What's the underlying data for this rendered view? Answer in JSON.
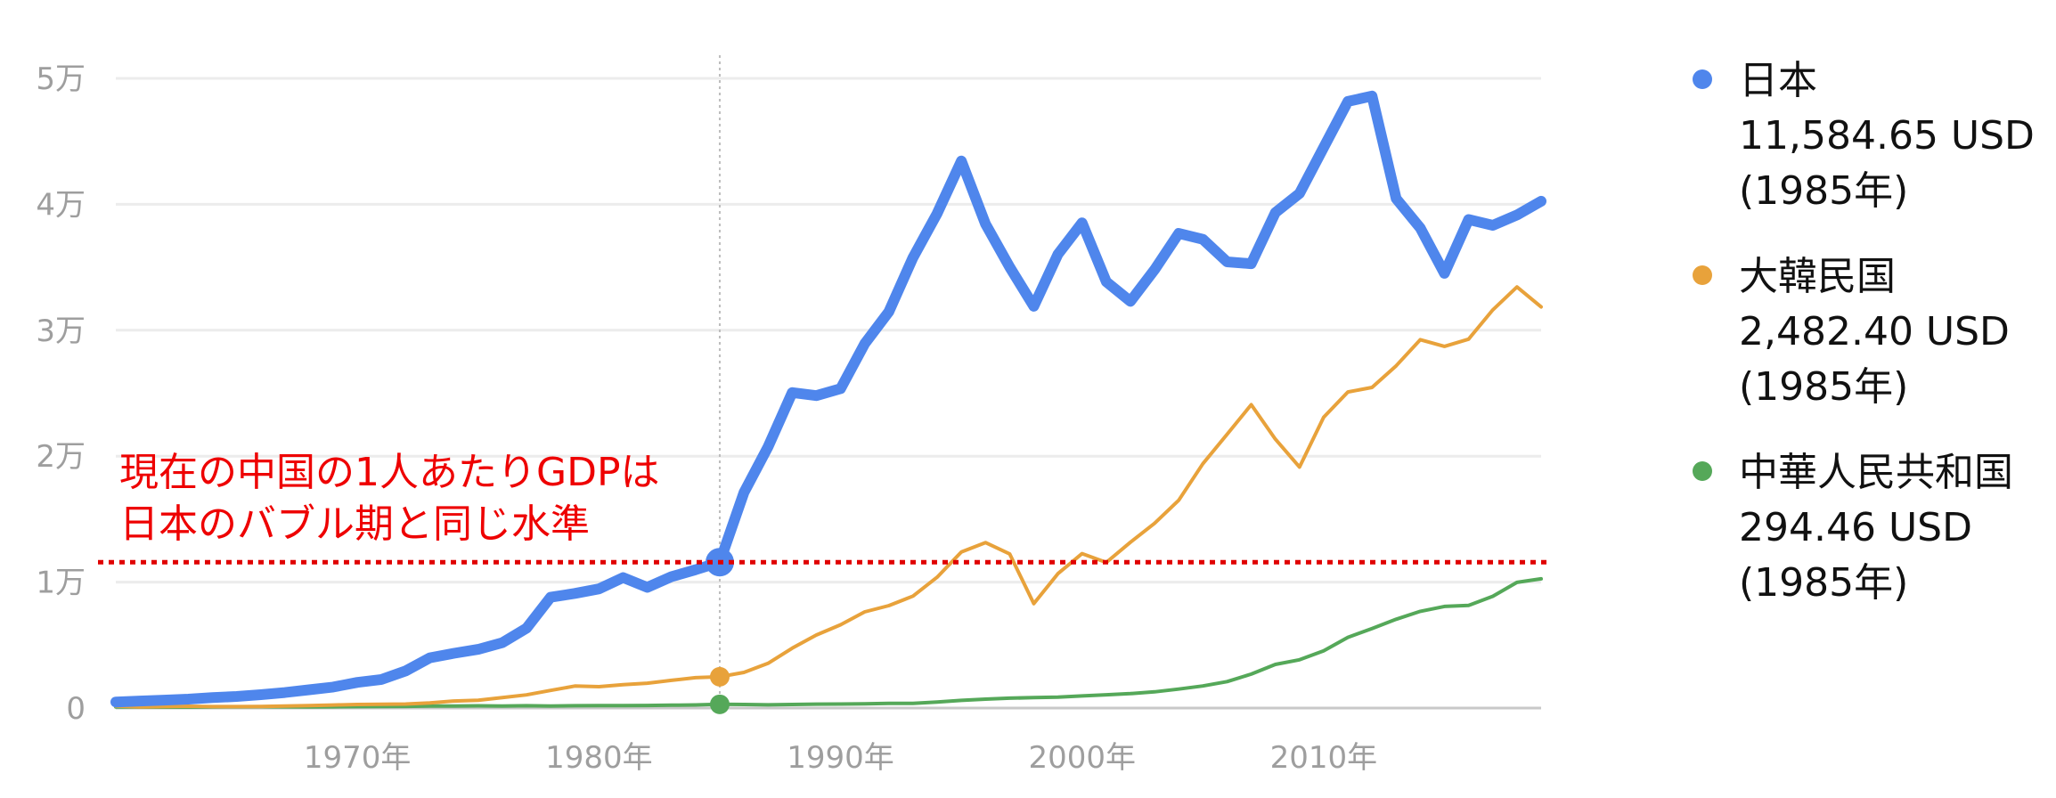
{
  "chart_data": {
    "type": "line",
    "x": [
      1960,
      1961,
      1962,
      1963,
      1964,
      1965,
      1966,
      1967,
      1968,
      1969,
      1970,
      1971,
      1972,
      1973,
      1974,
      1975,
      1976,
      1977,
      1978,
      1979,
      1980,
      1981,
      1982,
      1983,
      1984,
      1985,
      1986,
      1987,
      1988,
      1989,
      1990,
      1991,
      1992,
      1993,
      1994,
      1995,
      1996,
      1997,
      1998,
      1999,
      2000,
      2001,
      2002,
      2003,
      2004,
      2005,
      2006,
      2007,
      2008,
      2009,
      2010,
      2011,
      2012,
      2013,
      2014,
      2015,
      2016,
      2017,
      2018,
      2019
    ],
    "series": [
      {
        "name": "日本",
        "color": "#4f86ec",
        "values": [
          480,
          560,
          630,
          710,
          830,
          920,
          1060,
          1230,
          1450,
          1670,
          2040,
          2270,
          2950,
          3990,
          4350,
          4660,
          5190,
          6340,
          8800,
          9100,
          9460,
          10360,
          9580,
          10430,
          10980,
          11584.65,
          17110,
          20740,
          25050,
          24810,
          25360,
          28930,
          31470,
          35770,
          39270,
          43440,
          38440,
          35020,
          31900,
          36030,
          38530,
          33850,
          32290,
          34810,
          37690,
          37220,
          35430,
          35280,
          39340,
          40860,
          44510,
          48170,
          48600,
          40450,
          38110,
          34520,
          38790,
          38330,
          39150,
          40250
        ]
      },
      {
        "name": "大韓民国",
        "color": "#e8a23b",
        "values": [
          160,
          90,
          110,
          140,
          110,
          110,
          130,
          160,
          200,
          240,
          280,
          300,
          320,
          410,
          560,
          620,
          830,
          1050,
          1400,
          1750,
          1700,
          1850,
          1970,
          2200,
          2410,
          2482.4,
          2830,
          3550,
          4750,
          5800,
          6610,
          7640,
          8130,
          8890,
          10390,
          12400,
          13140,
          12240,
          8290,
          10670,
          12260,
          11560,
          13170,
          14670,
          16500,
          19400,
          21740,
          24090,
          21350,
          19140,
          23090,
          25100,
          25460,
          27180,
          29250,
          28720,
          29290,
          31620,
          33440,
          31850
        ]
      },
      {
        "name": "中華人民共和国",
        "color": "#55a859",
        "values": [
          90,
          76,
          70,
          74,
          85,
          98,
          104,
          97,
          91,
          100,
          113,
          119,
          132,
          157,
          160,
          178,
          165,
          185,
          156,
          184,
          195,
          197,
          203,
          225,
          250,
          294.46,
          281,
          252,
          284,
          311,
          318,
          333,
          366,
          377,
          473,
          610,
          709,
          782,
          829,
          873,
          959,
          1053,
          1149,
          1289,
          1509,
          1753,
          2099,
          2694,
          3468,
          3832,
          4550,
          5618,
          6317,
          7051,
          7679,
          8067,
          8148,
          8879,
          9977,
          10262
        ]
      }
    ],
    "yticks": [
      0,
      10000,
      20000,
      30000,
      40000,
      50000
    ],
    "ytick_labels": [
      "0",
      "1万",
      "2万",
      "3万",
      "4万",
      "5万"
    ],
    "xticks": [
      1970,
      1980,
      1990,
      2000,
      2010
    ],
    "xtick_labels": [
      "1970年",
      "1980年",
      "1990年",
      "2000年",
      "2010年"
    ],
    "xlim": [
      1960,
      2019
    ],
    "ylim": [
      0,
      50000
    ],
    "grid": true,
    "legend_position": "right",
    "highlight_year": 1985,
    "reference_line": {
      "value": 11584.65,
      "color": "#e00000",
      "style": "dotted"
    },
    "annotation": {
      "lines": [
        "現在の中国の1人あたりGDPは",
        "日本のバブル期と同じ水準"
      ],
      "color": "#ee0000"
    }
  },
  "legend": [
    {
      "name": "日本",
      "value": "11,584.65 USD",
      "year": "(1985年)",
      "color": "#4f86ec"
    },
    {
      "name": "大韓民国",
      "value": "2,482.40 USD",
      "year": "(1985年)",
      "color": "#e8a23b"
    },
    {
      "name": "中華人民共和国",
      "value": "294.46 USD",
      "year": "(1985年)",
      "color": "#55a859"
    }
  ]
}
